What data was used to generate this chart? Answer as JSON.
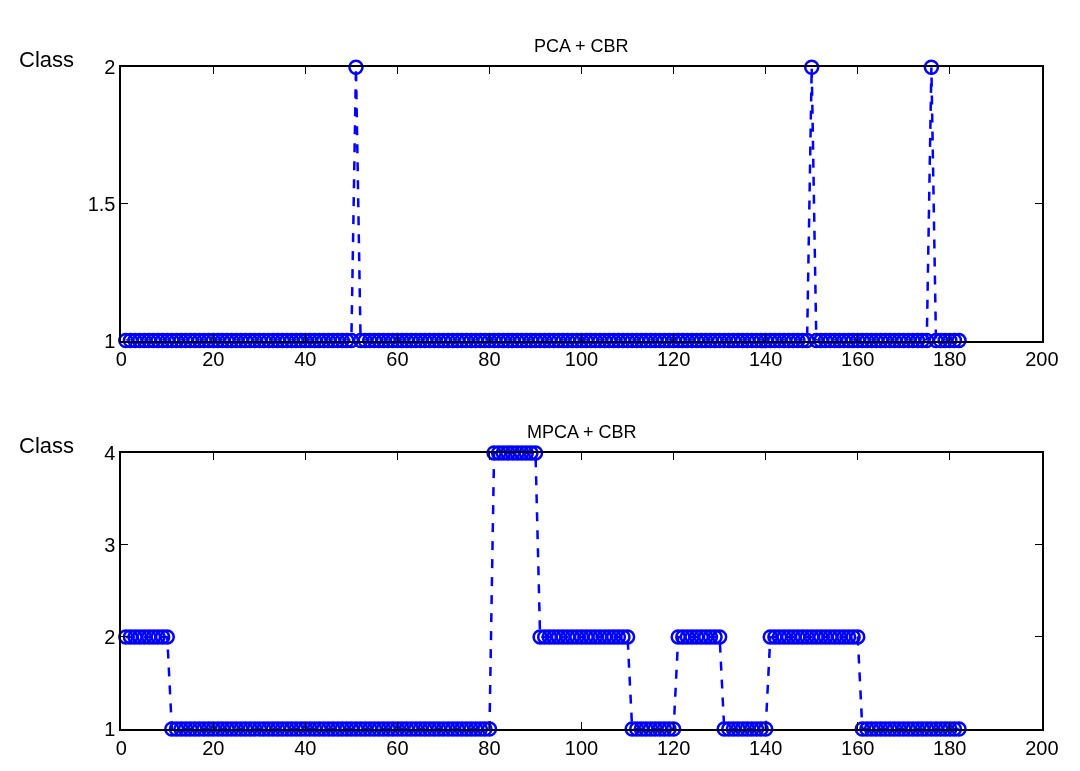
{
  "chart_data": [
    {
      "type": "line",
      "title": "PCA + CBR",
      "ylabel": "Class",
      "xlim": [
        0,
        200
      ],
      "xticks": [
        0,
        20,
        40,
        60,
        80,
        100,
        120,
        140,
        160,
        180,
        200
      ],
      "ylim": [
        1,
        2
      ],
      "yticks": [
        1,
        1.5,
        2
      ],
      "marker": "circle",
      "line_style": "dashed",
      "series": [
        {
          "color": "#0000ff",
          "x": [
            1,
            2,
            3,
            4,
            5,
            6,
            7,
            8,
            9,
            10,
            11,
            12,
            13,
            14,
            15,
            16,
            17,
            18,
            19,
            20,
            21,
            22,
            23,
            24,
            25,
            26,
            27,
            28,
            29,
            30,
            31,
            32,
            33,
            34,
            35,
            36,
            37,
            38,
            39,
            40,
            41,
            42,
            43,
            44,
            45,
            46,
            47,
            48,
            49,
            50,
            51,
            52,
            53,
            54,
            55,
            56,
            57,
            58,
            59,
            60,
            61,
            62,
            63,
            64,
            65,
            66,
            67,
            68,
            69,
            70,
            71,
            72,
            73,
            74,
            75,
            76,
            77,
            78,
            79,
            80,
            81,
            82,
            83,
            84,
            85,
            86,
            87,
            88,
            89,
            90,
            91,
            92,
            93,
            94,
            95,
            96,
            97,
            98,
            99,
            100,
            101,
            102,
            103,
            104,
            105,
            106,
            107,
            108,
            109,
            110,
            111,
            112,
            113,
            114,
            115,
            116,
            117,
            118,
            119,
            120,
            121,
            122,
            123,
            124,
            125,
            126,
            127,
            128,
            129,
            130,
            131,
            132,
            133,
            134,
            135,
            136,
            137,
            138,
            139,
            140,
            141,
            142,
            143,
            144,
            145,
            146,
            147,
            148,
            149,
            150,
            151,
            152,
            153,
            154,
            155,
            156,
            157,
            158,
            159,
            160,
            161,
            162,
            163,
            164,
            165,
            166,
            167,
            168,
            169,
            170,
            171,
            172,
            173,
            174,
            175,
            176,
            177,
            178,
            179,
            180,
            181,
            182
          ],
          "values": [
            1,
            1,
            1,
            1,
            1,
            1,
            1,
            1,
            1,
            1,
            1,
            1,
            1,
            1,
            1,
            1,
            1,
            1,
            1,
            1,
            1,
            1,
            1,
            1,
            1,
            1,
            1,
            1,
            1,
            1,
            1,
            1,
            1,
            1,
            1,
            1,
            1,
            1,
            1,
            1,
            1,
            1,
            1,
            1,
            1,
            1,
            1,
            1,
            1,
            1,
            2,
            1,
            1,
            1,
            1,
            1,
            1,
            1,
            1,
            1,
            1,
            1,
            1,
            1,
            1,
            1,
            1,
            1,
            1,
            1,
            1,
            1,
            1,
            1,
            1,
            1,
            1,
            1,
            1,
            1,
            1,
            1,
            1,
            1,
            1,
            1,
            1,
            1,
            1,
            1,
            1,
            1,
            1,
            1,
            1,
            1,
            1,
            1,
            1,
            1,
            1,
            1,
            1,
            1,
            1,
            1,
            1,
            1,
            1,
            1,
            1,
            1,
            1,
            1,
            1,
            1,
            1,
            1,
            1,
            1,
            1,
            1,
            1,
            1,
            1,
            1,
            1,
            1,
            1,
            1,
            1,
            1,
            1,
            1,
            1,
            1,
            1,
            1,
            1,
            1,
            1,
            1,
            1,
            1,
            1,
            1,
            1,
            1,
            1,
            2,
            1,
            1,
            1,
            1,
            1,
            1,
            1,
            1,
            1,
            1,
            1,
            1,
            1,
            1,
            1,
            1,
            1,
            1,
            1,
            1,
            1,
            1,
            1,
            1,
            1,
            2,
            1,
            1,
            1,
            1,
            1,
            1
          ]
        }
      ]
    },
    {
      "type": "line",
      "title": "MPCA + CBR",
      "ylabel": "Class",
      "xlim": [
        0,
        200
      ],
      "xticks": [
        0,
        20,
        40,
        60,
        80,
        100,
        120,
        140,
        160,
        180,
        200
      ],
      "ylim": [
        1,
        4
      ],
      "yticks": [
        1,
        2,
        3,
        4
      ],
      "marker": "circle",
      "line_style": "dashed",
      "series": [
        {
          "color": "#0000ff",
          "x": [
            1,
            2,
            3,
            4,
            5,
            6,
            7,
            8,
            9,
            10,
            11,
            12,
            13,
            14,
            15,
            16,
            17,
            18,
            19,
            20,
            21,
            22,
            23,
            24,
            25,
            26,
            27,
            28,
            29,
            30,
            31,
            32,
            33,
            34,
            35,
            36,
            37,
            38,
            39,
            40,
            41,
            42,
            43,
            44,
            45,
            46,
            47,
            48,
            49,
            50,
            51,
            52,
            53,
            54,
            55,
            56,
            57,
            58,
            59,
            60,
            61,
            62,
            63,
            64,
            65,
            66,
            67,
            68,
            69,
            70,
            71,
            72,
            73,
            74,
            75,
            76,
            77,
            78,
            79,
            80,
            81,
            82,
            83,
            84,
            85,
            86,
            87,
            88,
            89,
            90,
            91,
            92,
            93,
            94,
            95,
            96,
            97,
            98,
            99,
            100,
            101,
            102,
            103,
            104,
            105,
            106,
            107,
            108,
            109,
            110,
            111,
            112,
            113,
            114,
            115,
            116,
            117,
            118,
            119,
            120,
            121,
            122,
            123,
            124,
            125,
            126,
            127,
            128,
            129,
            130,
            131,
            132,
            133,
            134,
            135,
            136,
            137,
            138,
            139,
            140,
            141,
            142,
            143,
            144,
            145,
            146,
            147,
            148,
            149,
            150,
            151,
            152,
            153,
            154,
            155,
            156,
            157,
            158,
            159,
            160,
            161,
            162,
            163,
            164,
            165,
            166,
            167,
            168,
            169,
            170,
            171,
            172,
            173,
            174,
            175,
            176,
            177,
            178,
            179,
            180,
            181,
            182
          ],
          "values": [
            2,
            2,
            2,
            2,
            2,
            2,
            2,
            2,
            2,
            2,
            1,
            1,
            1,
            1,
            1,
            1,
            1,
            1,
            1,
            1,
            1,
            1,
            1,
            1,
            1,
            1,
            1,
            1,
            1,
            1,
            1,
            1,
            1,
            1,
            1,
            1,
            1,
            1,
            1,
            1,
            1,
            1,
            1,
            1,
            1,
            1,
            1,
            1,
            1,
            1,
            1,
            1,
            1,
            1,
            1,
            1,
            1,
            1,
            1,
            1,
            1,
            1,
            1,
            1,
            1,
            1,
            1,
            1,
            1,
            1,
            1,
            1,
            1,
            1,
            1,
            1,
            1,
            1,
            1,
            1,
            4,
            4,
            4,
            4,
            4,
            4,
            4,
            4,
            4,
            4,
            2,
            2,
            2,
            2,
            2,
            2,
            2,
            2,
            2,
            2,
            2,
            2,
            2,
            2,
            2,
            2,
            2,
            2,
            2,
            2,
            1,
            1,
            1,
            1,
            1,
            1,
            1,
            1,
            1,
            1,
            2,
            2,
            2,
            2,
            2,
            2,
            2,
            2,
            2,
            2,
            1,
            1,
            1,
            1,
            1,
            1,
            1,
            1,
            1,
            1,
            2,
            2,
            2,
            2,
            2,
            2,
            2,
            2,
            2,
            2,
            2,
            2,
            2,
            2,
            2,
            2,
            2,
            2,
            2,
            2,
            1,
            1,
            1,
            1,
            1,
            1,
            1,
            1,
            1,
            1,
            1,
            1,
            1,
            1,
            1,
            1,
            1,
            1,
            1,
            1,
            1,
            1
          ]
        }
      ]
    }
  ]
}
